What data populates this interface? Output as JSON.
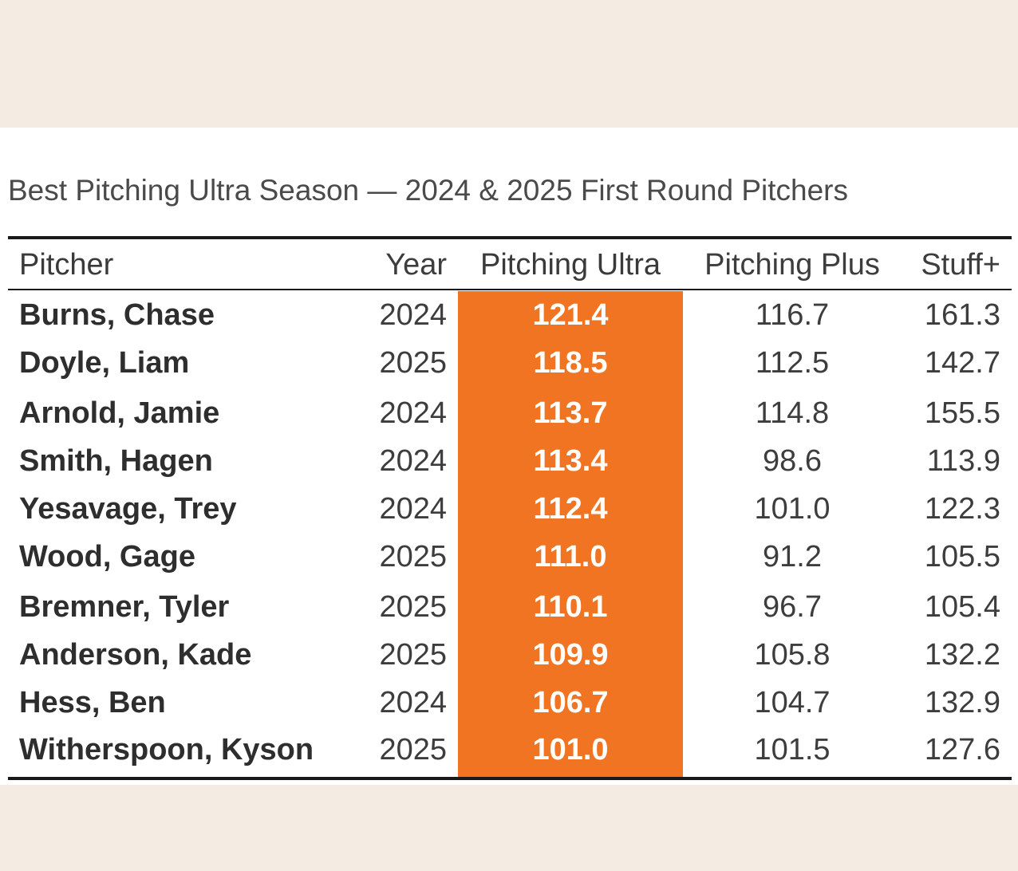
{
  "chart_data": {
    "type": "table",
    "title": "Best Pitching Ultra Season — 2024 & 2025 First Round Pitchers",
    "highlight_color": "#f07422",
    "columns": [
      "Pitcher",
      "Year",
      "Pitching Ultra",
      "Pitching Plus",
      "Stuff+"
    ],
    "rows": [
      [
        "Burns, Chase",
        "2024",
        "121.4",
        "116.7",
        "161.3"
      ],
      [
        "Doyle, Liam",
        "2025",
        "118.5",
        "112.5",
        "142.7"
      ],
      [
        "Arnold, Jamie",
        "2024",
        "113.7",
        "114.8",
        "155.5"
      ],
      [
        "Smith, Hagen",
        "2024",
        "113.4",
        "98.6",
        "113.9"
      ],
      [
        "Yesavage, Trey",
        "2024",
        "112.4",
        "101.0",
        "122.3"
      ],
      [
        "Wood, Gage",
        "2025",
        "111.0",
        "91.2",
        "105.5"
      ],
      [
        "Bremner, Tyler",
        "2025",
        "110.1",
        "96.7",
        "105.4"
      ],
      [
        "Anderson, Kade",
        "2025",
        "109.9",
        "105.8",
        "132.2"
      ],
      [
        "Hess, Ben",
        "2024",
        "106.7",
        "104.7",
        "132.9"
      ],
      [
        "Witherspoon, Kyson",
        "2025",
        "101.0",
        "101.5",
        "127.6"
      ]
    ]
  }
}
